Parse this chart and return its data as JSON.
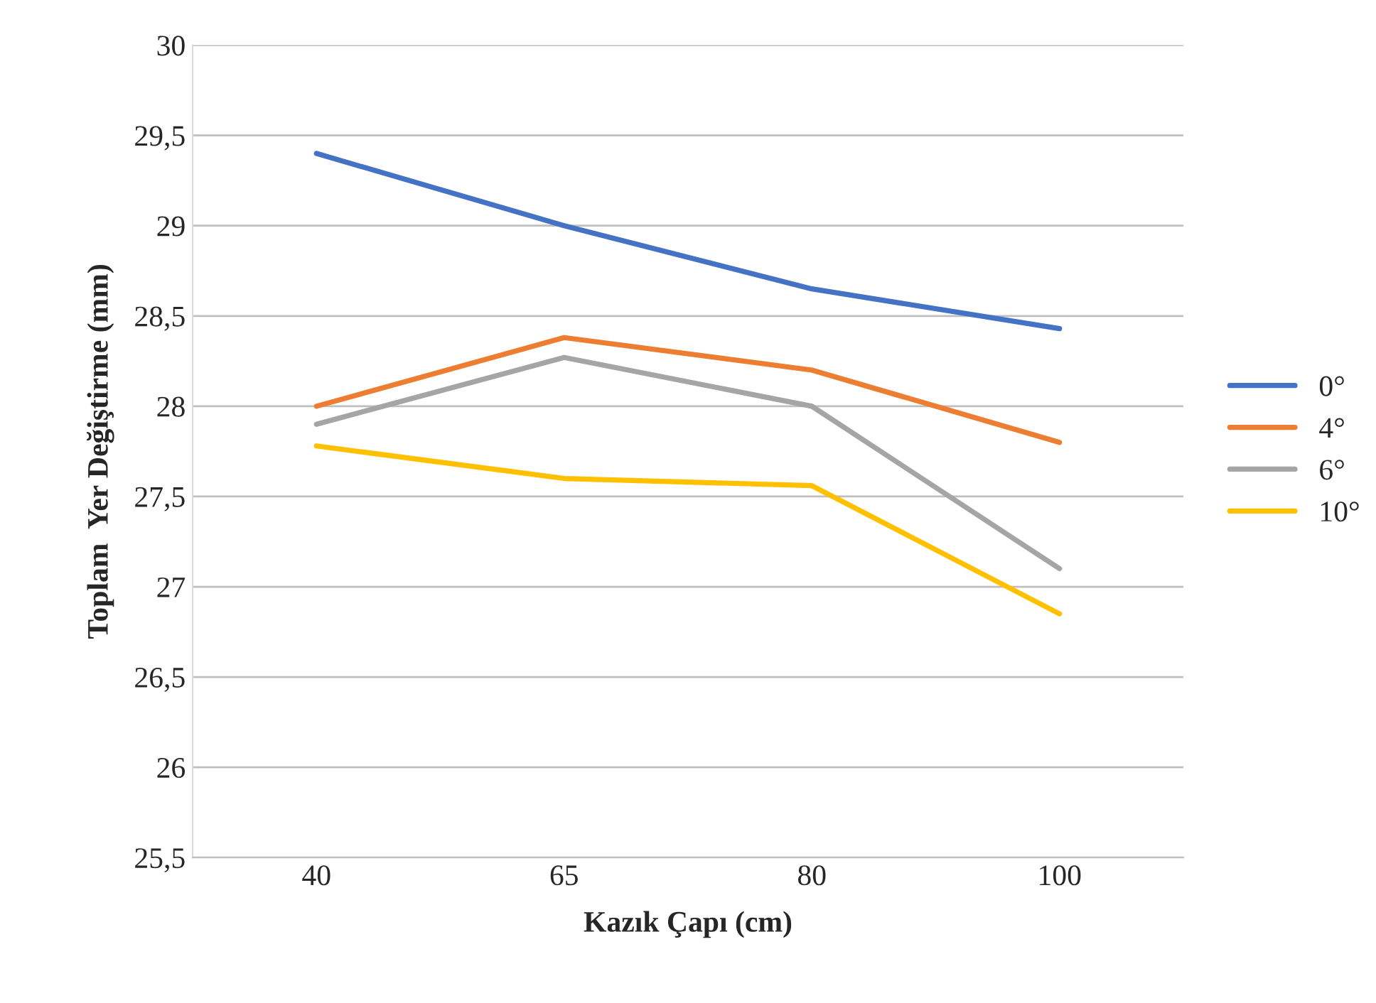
{
  "chart_data": {
    "type": "line",
    "xlabel": "Kazık Çapı (cm)",
    "ylabel": "Toplam  Yer Değiştirme (mm)",
    "categories": [
      "40",
      "65",
      "80",
      "100"
    ],
    "series": [
      {
        "name": "0°",
        "color": "#4472c4",
        "values": [
          29.4,
          29.0,
          28.65,
          28.43
        ]
      },
      {
        "name": "4°",
        "color": "#ed7d31",
        "values": [
          28.0,
          28.38,
          28.2,
          27.8
        ]
      },
      {
        "name": "6°",
        "color": "#a5a5a5",
        "values": [
          27.9,
          28.27,
          28.0,
          27.1
        ]
      },
      {
        "name": "10°",
        "color": "#ffc000",
        "values": [
          27.78,
          27.6,
          27.56,
          26.85
        ]
      }
    ],
    "ylim": [
      25.5,
      30
    ],
    "yticks": [
      {
        "value": 25.5,
        "label": "25,5"
      },
      26,
      {
        "value": 26.5,
        "label": "26,5"
      },
      27,
      {
        "value": 27.5,
        "label": "27,5"
      },
      28,
      {
        "value": 28.5,
        "label": "28,5"
      },
      29,
      {
        "value": 29.5,
        "label": "29,5"
      },
      30
    ],
    "grid": "y",
    "legend": "right",
    "marker": "none",
    "line_style": "solid"
  }
}
